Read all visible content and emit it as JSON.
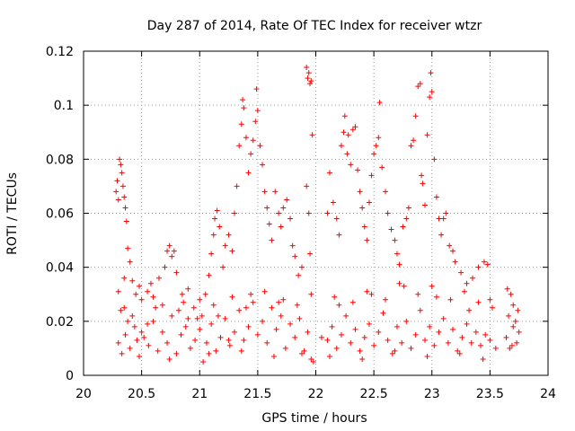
{
  "chart_data": {
    "type": "scatter",
    "title": "Day 287 of 2014, Rate Of TEC Index for receiver wtzr",
    "xlabel": "GPS time / hours",
    "ylabel": "ROTI / TECUs",
    "xlim": [
      20,
      24
    ],
    "ylim": [
      0,
      0.12
    ],
    "xticks": [
      "20",
      "20.5",
      "21",
      "21.5",
      "22",
      "22.5",
      "23",
      "23.5",
      "24"
    ],
    "yticks": [
      "0",
      "0.02",
      "0.04",
      "0.06",
      "0.08",
      "0.1",
      "0.12"
    ],
    "grid": true,
    "marker": "plus",
    "color": "#ff0000",
    "series": [
      {
        "name": "ROTI",
        "points": [
          [
            20.28,
            0.068
          ],
          [
            20.29,
            0.072
          ],
          [
            20.3,
            0.065
          ],
          [
            20.31,
            0.08
          ],
          [
            20.32,
            0.078
          ],
          [
            20.33,
            0.075
          ],
          [
            20.34,
            0.07
          ],
          [
            20.35,
            0.066
          ],
          [
            20.36,
            0.062
          ],
          [
            20.37,
            0.057
          ],
          [
            20.38,
            0.047
          ],
          [
            20.4,
            0.042
          ],
          [
            20.3,
            0.031
          ],
          [
            20.32,
            0.024
          ],
          [
            20.35,
            0.036
          ],
          [
            20.42,
            0.035
          ],
          [
            20.45,
            0.03
          ],
          [
            20.48,
            0.033
          ],
          [
            20.5,
            0.028
          ],
          [
            20.55,
            0.031
          ],
          [
            20.58,
            0.034
          ],
          [
            20.6,
            0.029
          ],
          [
            20.65,
            0.036
          ],
          [
            20.7,
            0.04
          ],
          [
            20.72,
            0.046
          ],
          [
            20.74,
            0.048
          ],
          [
            20.76,
            0.044
          ],
          [
            20.78,
            0.046
          ],
          [
            20.8,
            0.038
          ],
          [
            20.85,
            0.03
          ],
          [
            20.9,
            0.032
          ],
          [
            20.95,
            0.025
          ],
          [
            21.0,
            0.028
          ],
          [
            21.02,
            0.022
          ],
          [
            21.05,
            0.03
          ],
          [
            21.08,
            0.037
          ],
          [
            21.1,
            0.045
          ],
          [
            21.12,
            0.052
          ],
          [
            21.13,
            0.058
          ],
          [
            21.15,
            0.061
          ],
          [
            21.17,
            0.055
          ],
          [
            21.2,
            0.04
          ],
          [
            21.22,
            0.048
          ],
          [
            21.25,
            0.052
          ],
          [
            21.28,
            0.046
          ],
          [
            21.3,
            0.06
          ],
          [
            21.32,
            0.07
          ],
          [
            21.34,
            0.085
          ],
          [
            21.36,
            0.093
          ],
          [
            21.37,
            0.102
          ],
          [
            21.38,
            0.099
          ],
          [
            21.4,
            0.088
          ],
          [
            21.42,
            0.075
          ],
          [
            21.44,
            0.082
          ],
          [
            21.46,
            0.087
          ],
          [
            21.48,
            0.094
          ],
          [
            21.49,
            0.106
          ],
          [
            21.5,
            0.098
          ],
          [
            21.52,
            0.085
          ],
          [
            21.54,
            0.078
          ],
          [
            21.56,
            0.068
          ],
          [
            21.58,
            0.062
          ],
          [
            21.6,
            0.056
          ],
          [
            21.62,
            0.05
          ],
          [
            21.65,
            0.068
          ],
          [
            21.68,
            0.06
          ],
          [
            21.7,
            0.055
          ],
          [
            21.72,
            0.062
          ],
          [
            21.75,
            0.065
          ],
          [
            21.78,
            0.058
          ],
          [
            21.8,
            0.048
          ],
          [
            21.82,
            0.044
          ],
          [
            21.85,
            0.037
          ],
          [
            21.88,
            0.04
          ],
          [
            21.92,
            0.114
          ],
          [
            21.93,
            0.11
          ],
          [
            21.94,
            0.112
          ],
          [
            21.95,
            0.108
          ],
          [
            21.96,
            0.109
          ],
          [
            21.97,
            0.089
          ],
          [
            21.92,
            0.07
          ],
          [
            21.94,
            0.06
          ],
          [
            21.95,
            0.045
          ],
          [
            21.96,
            0.03
          ],
          [
            22.1,
            0.06
          ],
          [
            22.12,
            0.075
          ],
          [
            22.15,
            0.064
          ],
          [
            22.18,
            0.058
          ],
          [
            22.2,
            0.052
          ],
          [
            22.22,
            0.085
          ],
          [
            22.24,
            0.09
          ],
          [
            22.25,
            0.096
          ],
          [
            22.27,
            0.082
          ],
          [
            22.28,
            0.089
          ],
          [
            22.3,
            0.078
          ],
          [
            22.32,
            0.091
          ],
          [
            22.34,
            0.092
          ],
          [
            22.36,
            0.076
          ],
          [
            22.38,
            0.068
          ],
          [
            22.4,
            0.062
          ],
          [
            22.42,
            0.055
          ],
          [
            22.44,
            0.05
          ],
          [
            22.46,
            0.064
          ],
          [
            22.48,
            0.074
          ],
          [
            22.5,
            0.082
          ],
          [
            22.52,
            0.085
          ],
          [
            22.54,
            0.088
          ],
          [
            22.55,
            0.101
          ],
          [
            22.57,
            0.077
          ],
          [
            22.6,
            0.068
          ],
          [
            22.62,
            0.06
          ],
          [
            22.65,
            0.054
          ],
          [
            22.68,
            0.05
          ],
          [
            22.7,
            0.045
          ],
          [
            22.72,
            0.041
          ],
          [
            22.75,
            0.055
          ],
          [
            22.78,
            0.058
          ],
          [
            22.8,
            0.062
          ],
          [
            22.82,
            0.085
          ],
          [
            22.84,
            0.087
          ],
          [
            22.86,
            0.096
          ],
          [
            22.88,
            0.107
          ],
          [
            22.9,
            0.108
          ],
          [
            22.91,
            0.074
          ],
          [
            22.92,
            0.071
          ],
          [
            22.94,
            0.063
          ],
          [
            22.96,
            0.089
          ],
          [
            22.98,
            0.103
          ],
          [
            22.99,
            0.112
          ],
          [
            23.0,
            0.105
          ],
          [
            23.02,
            0.08
          ],
          [
            23.04,
            0.066
          ],
          [
            23.06,
            0.058
          ],
          [
            23.08,
            0.052
          ],
          [
            23.1,
            0.058
          ],
          [
            23.12,
            0.06
          ],
          [
            23.15,
            0.048
          ],
          [
            23.18,
            0.046
          ],
          [
            23.2,
            0.042
          ],
          [
            23.25,
            0.038
          ],
          [
            23.3,
            0.034
          ],
          [
            23.35,
            0.036
          ],
          [
            23.4,
            0.04
          ],
          [
            23.45,
            0.042
          ],
          [
            23.48,
            0.041
          ],
          [
            23.5,
            0.028
          ],
          [
            23.65,
            0.032
          ],
          [
            23.68,
            0.03
          ],
          [
            23.7,
            0.026
          ],
          [
            23.74,
            0.024
          ],
          [
            20.3,
            0.012
          ],
          [
            20.33,
            0.008
          ],
          [
            20.36,
            0.015
          ],
          [
            20.4,
            0.01
          ],
          [
            20.44,
            0.018
          ],
          [
            20.48,
            0.007
          ],
          [
            20.52,
            0.014
          ],
          [
            20.56,
            0.011
          ],
          [
            20.6,
            0.02
          ],
          [
            20.64,
            0.009
          ],
          [
            20.68,
            0.016
          ],
          [
            20.72,
            0.012
          ],
          [
            20.76,
            0.022
          ],
          [
            20.8,
            0.008
          ],
          [
            20.84,
            0.015
          ],
          [
            20.88,
            0.018
          ],
          [
            20.92,
            0.01
          ],
          [
            20.96,
            0.013
          ],
          [
            21.0,
            0.017
          ],
          [
            21.03,
            0.005
          ],
          [
            21.06,
            0.012
          ],
          [
            21.1,
            0.019
          ],
          [
            21.14,
            0.009
          ],
          [
            21.18,
            0.014
          ],
          [
            21.22,
            0.021
          ],
          [
            21.26,
            0.011
          ],
          [
            21.3,
            0.016
          ],
          [
            21.34,
            0.024
          ],
          [
            21.38,
            0.013
          ],
          [
            21.42,
            0.018
          ],
          [
            21.46,
            0.027
          ],
          [
            21.5,
            0.015
          ],
          [
            21.54,
            0.02
          ],
          [
            21.58,
            0.012
          ],
          [
            21.62,
            0.025
          ],
          [
            21.66,
            0.017
          ],
          [
            21.7,
            0.022
          ],
          [
            21.74,
            0.01
          ],
          [
            21.78,
            0.019
          ],
          [
            21.82,
            0.014
          ],
          [
            21.86,
            0.021
          ],
          [
            21.9,
            0.009
          ],
          [
            21.93,
            0.016
          ],
          [
            21.96,
            0.006
          ],
          [
            22.1,
            0.013
          ],
          [
            22.14,
            0.018
          ],
          [
            22.18,
            0.01
          ],
          [
            22.22,
            0.015
          ],
          [
            22.26,
            0.022
          ],
          [
            22.3,
            0.012
          ],
          [
            22.34,
            0.017
          ],
          [
            22.38,
            0.009
          ],
          [
            22.42,
            0.014
          ],
          [
            22.46,
            0.019
          ],
          [
            22.5,
            0.011
          ],
          [
            22.54,
            0.016
          ],
          [
            22.58,
            0.023
          ],
          [
            22.62,
            0.013
          ],
          [
            22.66,
            0.008
          ],
          [
            22.7,
            0.018
          ],
          [
            22.74,
            0.012
          ],
          [
            22.78,
            0.02
          ],
          [
            22.82,
            0.01
          ],
          [
            22.86,
            0.015
          ],
          [
            22.9,
            0.024
          ],
          [
            22.94,
            0.013
          ],
          [
            22.98,
            0.018
          ],
          [
            23.02,
            0.011
          ],
          [
            23.06,
            0.016
          ],
          [
            23.1,
            0.021
          ],
          [
            23.14,
            0.012
          ],
          [
            23.18,
            0.017
          ],
          [
            23.22,
            0.009
          ],
          [
            23.26,
            0.014
          ],
          [
            23.3,
            0.019
          ],
          [
            23.34,
            0.012
          ],
          [
            23.38,
            0.016
          ],
          [
            23.42,
            0.011
          ],
          [
            23.46,
            0.015
          ],
          [
            23.5,
            0.013
          ],
          [
            23.64,
            0.014
          ],
          [
            23.67,
            0.01
          ],
          [
            23.7,
            0.018
          ],
          [
            23.73,
            0.012
          ],
          [
            23.75,
            0.016
          ],
          [
            20.38,
            0.02
          ],
          [
            20.62,
            0.025
          ],
          [
            20.86,
            0.027
          ],
          [
            21.16,
            0.022
          ],
          [
            21.44,
            0.03
          ],
          [
            21.72,
            0.028
          ],
          [
            22.2,
            0.026
          ],
          [
            22.48,
            0.03
          ],
          [
            22.76,
            0.033
          ],
          [
            23.04,
            0.029
          ],
          [
            23.32,
            0.024
          ],
          [
            20.5,
            0.016
          ],
          [
            21.25,
            0.013
          ],
          [
            22.05,
            0.014
          ],
          [
            23.55,
            0.01
          ],
          [
            20.35,
            0.025
          ],
          [
            20.42,
            0.022
          ],
          [
            20.55,
            0.019
          ],
          [
            20.68,
            0.026
          ],
          [
            20.82,
            0.024
          ],
          [
            20.98,
            0.021
          ],
          [
            21.12,
            0.026
          ],
          [
            21.28,
            0.029
          ],
          [
            21.4,
            0.025
          ],
          [
            21.56,
            0.031
          ],
          [
            21.68,
            0.027
          ],
          [
            21.84,
            0.026
          ],
          [
            22.16,
            0.029
          ],
          [
            22.32,
            0.027
          ],
          [
            22.44,
            0.031
          ],
          [
            22.6,
            0.028
          ],
          [
            22.72,
            0.034
          ],
          [
            22.88,
            0.03
          ],
          [
            23.0,
            0.033
          ],
          [
            23.16,
            0.028
          ],
          [
            23.28,
            0.031
          ],
          [
            23.4,
            0.027
          ],
          [
            23.52,
            0.025
          ],
          [
            23.66,
            0.022
          ],
          [
            23.72,
            0.02
          ],
          [
            20.46,
            0.013
          ],
          [
            20.74,
            0.006
          ],
          [
            21.08,
            0.008
          ],
          [
            21.36,
            0.009
          ],
          [
            21.64,
            0.007
          ],
          [
            21.88,
            0.008
          ],
          [
            22.12,
            0.007
          ],
          [
            22.4,
            0.006
          ],
          [
            22.68,
            0.009
          ],
          [
            22.96,
            0.007
          ],
          [
            23.24,
            0.008
          ],
          [
            23.44,
            0.006
          ],
          [
            23.69,
            0.011
          ],
          [
            21.98,
            0.005
          ],
          [
            20.9,
            0.021
          ]
        ]
      }
    ]
  }
}
